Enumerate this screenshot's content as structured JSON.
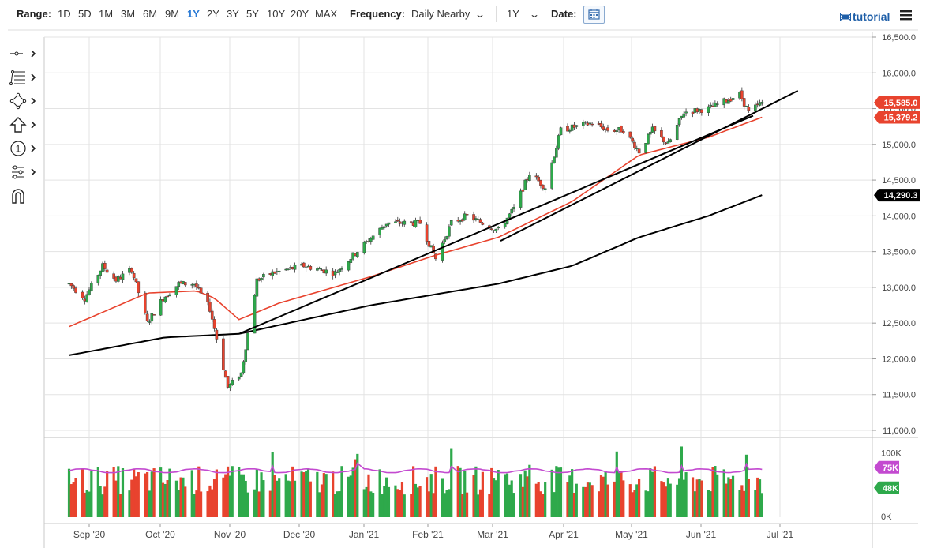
{
  "toolbar_top": {
    "range_label": "Range:",
    "ranges": [
      "1D",
      "5D",
      "1M",
      "3M",
      "6M",
      "9M",
      "1Y",
      "2Y",
      "3Y",
      "5Y",
      "10Y",
      "20Y",
      "MAX"
    ],
    "active_range": "1Y",
    "frequency_label": "Frequency:",
    "frequency_value": "Daily Nearby",
    "period_value": "1Y",
    "date_label": "Date:",
    "tutorial_label": "tutorial",
    "accent_color": "#2a7ad5"
  },
  "drawing_tools": [
    {
      "icon": "line-tool-icon"
    },
    {
      "icon": "fibonacci-tool-icon"
    },
    {
      "icon": "shape-tool-icon"
    },
    {
      "icon": "arrow-up-tool-icon"
    },
    {
      "icon": "annotation-number-icon",
      "text": "1"
    },
    {
      "icon": "measure-tool-icon"
    },
    {
      "icon": "magnet-icon"
    }
  ],
  "chart_data": {
    "type": "candlestick",
    "x_tick_labels": [
      "Sep '20",
      "Oct '20",
      "Nov '20",
      "Dec '20",
      "Jan '21",
      "Feb '21",
      "Mar '21",
      "Apr '21",
      "May '21",
      "Jun '21",
      "Jul '21"
    ],
    "ylim": [
      11000,
      16500
    ],
    "y_tick_labels": [
      "16,500.0",
      "16,000.0",
      "15,500.0",
      "15,000.0",
      "14,500.0",
      "14,000.0",
      "13,500.0",
      "13,000.0",
      "12,500.0",
      "12,000.0",
      "11,500.0",
      "11,000.0"
    ],
    "price_key_points": [
      [
        "2020-08-18",
        13050
      ],
      [
        "2020-08-25",
        12850
      ],
      [
        "2020-09-02",
        13300
      ],
      [
        "2020-09-08",
        13100
      ],
      [
        "2020-09-15",
        13250
      ],
      [
        "2020-09-22",
        12500
      ],
      [
        "2020-09-29",
        12850
      ],
      [
        "2020-10-06",
        13050
      ],
      [
        "2020-10-13",
        13050
      ],
      [
        "2020-10-20",
        12700
      ],
      [
        "2020-10-28",
        11600
      ],
      [
        "2020-11-03",
        11800
      ],
      [
        "2020-11-10",
        13100
      ],
      [
        "2020-11-17",
        13200
      ],
      [
        "2020-12-01",
        13300
      ],
      [
        "2020-12-15",
        13200
      ],
      [
        "2020-12-28",
        13600
      ],
      [
        "2021-01-07",
        13900
      ],
      [
        "2021-01-14",
        13900
      ],
      [
        "2021-01-22",
        13900
      ],
      [
        "2021-01-29",
        13400
      ],
      [
        "2021-02-05",
        13900
      ],
      [
        "2021-02-12",
        14000
      ],
      [
        "2021-02-19",
        13900
      ],
      [
        "2021-02-26",
        13800
      ],
      [
        "2021-03-05",
        14100
      ],
      [
        "2021-03-12",
        14600
      ],
      [
        "2021-03-19",
        14400
      ],
      [
        "2021-03-26",
        15200
      ],
      [
        "2021-04-02",
        15250
      ],
      [
        "2021-04-09",
        15300
      ],
      [
        "2021-04-16",
        15200
      ],
      [
        "2021-04-23",
        15200
      ],
      [
        "2021-04-30",
        14900
      ],
      [
        "2021-05-06",
        15200
      ],
      [
        "2021-05-13",
        15000
      ],
      [
        "2021-05-20",
        15450
      ],
      [
        "2021-05-31",
        15500
      ],
      [
        "2021-06-07",
        15600
      ],
      [
        "2021-06-14",
        15700
      ],
      [
        "2021-06-18",
        15450
      ],
      [
        "2021-06-24",
        15585
      ]
    ],
    "ma50_key_points": [
      [
        "2020-08-18",
        12450
      ],
      [
        "2020-09-22",
        12920
      ],
      [
        "2020-10-14",
        12950
      ],
      [
        "2020-10-22",
        12850
      ],
      [
        "2020-11-02",
        12550
      ],
      [
        "2020-11-20",
        12780
      ],
      [
        "2020-12-31",
        13150
      ],
      [
        "2021-01-29",
        13450
      ],
      [
        "2021-02-26",
        13700
      ],
      [
        "2021-03-31",
        14200
      ],
      [
        "2021-04-30",
        14850
      ],
      [
        "2021-05-31",
        15100
      ],
      [
        "2021-06-24",
        15379.2
      ]
    ],
    "ma200_key_points": [
      [
        "2020-08-18",
        12050
      ],
      [
        "2020-09-30",
        12300
      ],
      [
        "2020-11-02",
        12350
      ],
      [
        "2020-12-31",
        12750
      ],
      [
        "2021-02-26",
        13050
      ],
      [
        "2021-03-31",
        13300
      ],
      [
        "2021-04-30",
        13700
      ],
      [
        "2021-05-31",
        14000
      ],
      [
        "2021-06-24",
        14290.3
      ]
    ],
    "trendline_short": [
      [
        "2021-02-27",
        13650
      ],
      [
        "2021-07-10",
        15750
      ]
    ],
    "trendline_long": [
      [
        "2020-11-02",
        12350
      ],
      [
        "2021-06-20",
        15400
      ]
    ],
    "last_price": "15,585.0",
    "ma50_last": "15,379.2",
    "ma200_last": "14,290.3",
    "volume": {
      "ylim": [
        0,
        120000
      ],
      "y_tick_labels": [
        "100K",
        "0K"
      ],
      "volume_ma_last": "75K",
      "last_volume": "48K"
    },
    "colors": {
      "up": "#2ea94b",
      "down": "#e8432e",
      "ma50": "#e8432e",
      "ma200": "#000000",
      "trendline": "#000000",
      "volume_ma": "#c34ad0",
      "last_price_bg": "#e8432e",
      "ma200_bg": "#000000"
    }
  }
}
